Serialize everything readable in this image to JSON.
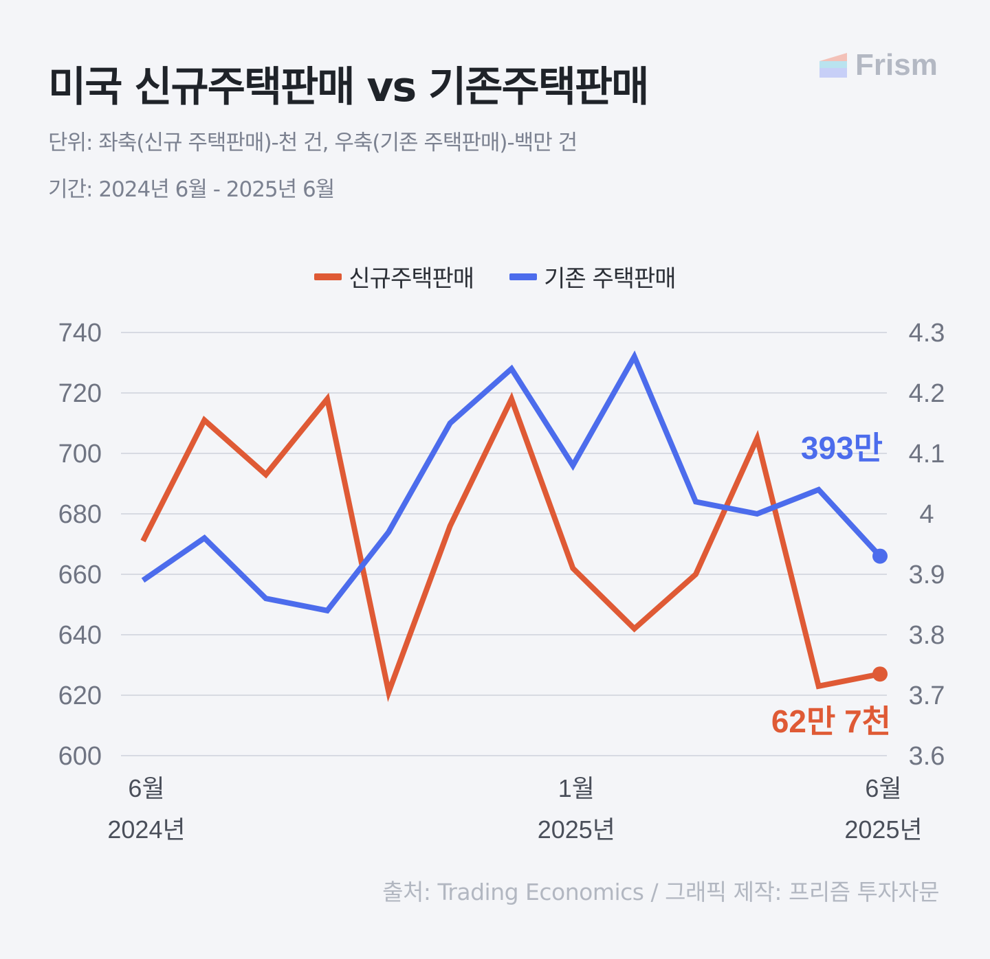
{
  "header": {
    "title": "미국 신규주택판매 vs 기존주택판매",
    "unit_line": "단위: 좌축(신규 주택판매)-천 건, 우축(기존 주택판매)-백만 건",
    "period_line": "기간: 2024년 6월 - 2025년 6월"
  },
  "logo": {
    "text": "Frism",
    "icon": "frism-logo-icon"
  },
  "legend": [
    {
      "label": "신규주택판매",
      "color": "#df5a35"
    },
    {
      "label": "기존 주택판매",
      "color": "#4c6cec"
    }
  ],
  "chart_data": {
    "type": "line",
    "x": [
      "2024-06",
      "2024-07",
      "2024-08",
      "2024-09",
      "2024-10",
      "2024-11",
      "2024-12",
      "2025-01",
      "2025-02",
      "2025-03",
      "2025-04",
      "2025-05",
      "2025-06"
    ],
    "x_tick_labels": [
      {
        "index": 0,
        "month": "6월",
        "year": "2024년"
      },
      {
        "index": 7,
        "month": "1월",
        "year": "2025년"
      },
      {
        "index": 12,
        "month": "6월",
        "year": "2025년"
      }
    ],
    "series": [
      {
        "name": "신규주택판매",
        "axis": "left",
        "color": "#df5a35",
        "values": [
          671,
          711,
          693,
          718,
          621,
          676,
          718,
          662,
          642,
          660,
          705,
          623,
          627
        ]
      },
      {
        "name": "기존 주택판매",
        "axis": "right",
        "color": "#4c6cec",
        "values": [
          3.89,
          3.96,
          3.86,
          3.84,
          3.97,
          4.15,
          4.24,
          4.08,
          4.26,
          4.02,
          4.0,
          4.04,
          3.93
        ]
      }
    ],
    "y_left": {
      "lim": [
        600,
        740
      ],
      "ticks": [
        "600",
        "620",
        "640",
        "660",
        "680",
        "700",
        "720",
        "740"
      ]
    },
    "y_right": {
      "lim": [
        3.6,
        4.3
      ],
      "ticks": [
        "3.6",
        "3.7",
        "3.8",
        "3.9",
        "4",
        "4.1",
        "4.2",
        "4.3"
      ]
    },
    "grid": true,
    "legend_position": "top-center",
    "annotations": [
      {
        "text": "393만",
        "series": "기존 주택판매",
        "color": "#4c6cec"
      },
      {
        "text": "62만 7천",
        "series": "신규주택판매",
        "color": "#df5a35"
      }
    ]
  },
  "footer": {
    "source": "출처: Trading Economics  / 그래픽 제작: 프리즘 투자자문"
  }
}
